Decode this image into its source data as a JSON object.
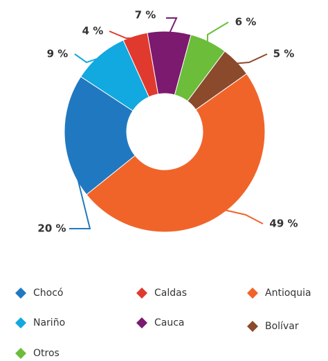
{
  "chart_data": {
    "type": "donut",
    "categories": [
      "Cauca",
      "Otros",
      "Bolívar",
      "Antioquia",
      "Chocó",
      "Nariño",
      "Caldas"
    ],
    "values": [
      7,
      6,
      5,
      49,
      20,
      9,
      4
    ],
    "value_labels": [
      "7 %",
      "6 %",
      "5 %",
      "49 %",
      "20 %",
      "9 %",
      "4 %"
    ],
    "colors": [
      "#7b1a6e",
      "#6bbd3a",
      "#8b4a2b",
      "#f0642a",
      "#2079c0",
      "#12a8e0",
      "#e03a2f"
    ],
    "legend": true
  }
}
